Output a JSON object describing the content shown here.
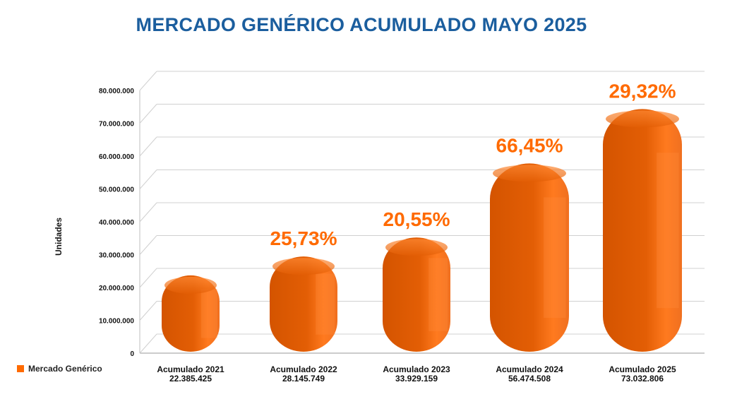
{
  "title": "MERCADO GENÉRICO ACUMULADO MAYO 2025",
  "legend": {
    "label": "Mercado Genérico",
    "color": "#ff6a00"
  },
  "chart_data": {
    "type": "bar",
    "title": "MERCADO GENÉRICO ACUMULADO MAYO 2025",
    "ylabel": "Unidades",
    "xlabel": "",
    "ylim": [
      0,
      80000000
    ],
    "yticks": [
      "0",
      "10.000.000",
      "20.000.000",
      "30.000.000",
      "40.000.000",
      "50.000.000",
      "60.000.000",
      "70.000.000",
      "80.000.000"
    ],
    "categories": [
      "Acumulado 2021",
      "Acumulado 2022",
      "Acumulado 2023",
      "Acumulado 2024",
      "Acumulado 2025"
    ],
    "value_labels": [
      "22.385.425",
      "28.145.749",
      "33.929.159",
      "56.474.508",
      "73.032.806"
    ],
    "values": [
      22385425,
      28145749,
      33929159,
      56474508,
      73032806
    ],
    "growth_labels": [
      "",
      "25,73%",
      "20,55%",
      "66,45%",
      "29,32%"
    ],
    "series": [
      {
        "name": "Mercado Genérico",
        "values": [
          22385425,
          28145749,
          33929159,
          56474508,
          73032806
        ]
      }
    ],
    "grid": true,
    "legend_position": "bottom-left",
    "colors": {
      "bar": "#e35e05",
      "bar_light": "#ff7a1f",
      "growth": "#ff6a00",
      "grid": "#d0d0d0"
    }
  }
}
